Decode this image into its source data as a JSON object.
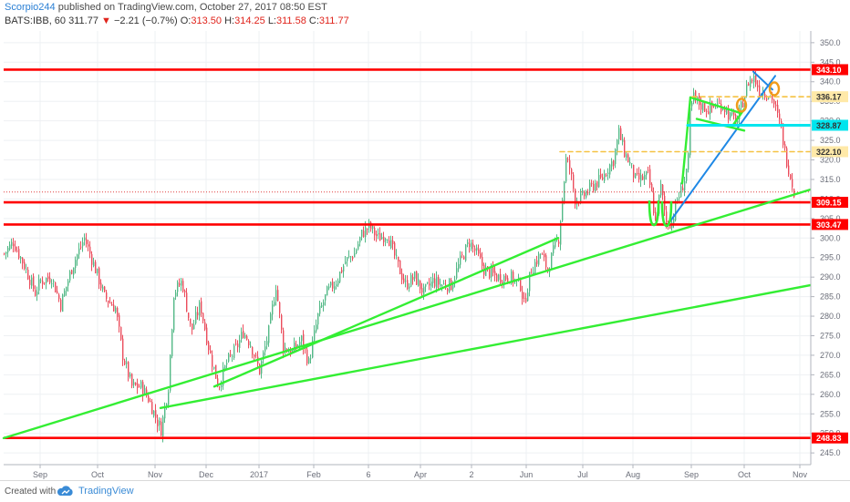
{
  "header": {
    "author": "Scorpio244",
    "published": "published on TradingView.com, October 27, 2017 08:50 EST",
    "symbol": "BATS:IBB, 60",
    "last": "311.77",
    "change": "−2.21 (−0.7%)",
    "o_label": "O:",
    "o_value": "313.50",
    "h_label": "H:",
    "h_value": "314.25",
    "l_label": "L:",
    "l_value": "311.58",
    "c_label": "C:",
    "c_value": "311.77"
  },
  "footer": {
    "created": "Created with",
    "brand": "TradingView"
  },
  "colors": {
    "up": "#53b987",
    "down": "#eb4d5c",
    "support": "#ff0000",
    "trend": "#33ee33",
    "wedge": "#1e88e5",
    "cyan": "#00e5ee",
    "dashed": "#f5c242",
    "circle": "#f09c1b"
  },
  "chart_data": {
    "type": "candlestick",
    "ylim": [
      242,
      353
    ],
    "y_ticks": [
      245,
      250,
      255,
      260,
      265,
      270,
      275,
      280,
      285,
      290,
      295,
      300,
      305,
      310,
      315,
      320,
      325,
      330,
      335,
      340,
      345,
      350
    ],
    "x_ticks": [
      {
        "label": "Sep",
        "bar": 40
      },
      {
        "label": "Oct",
        "bar": 103
      },
      {
        "label": "Nov",
        "bar": 166
      },
      {
        "label": "Dec",
        "bar": 222
      },
      {
        "label": "2017",
        "bar": 280
      },
      {
        "label": "Feb",
        "bar": 340
      },
      {
        "label": "6",
        "bar": 400
      },
      {
        "label": "Apr",
        "bar": 457
      },
      {
        "label": "2",
        "bar": 513
      },
      {
        "label": "Jun",
        "bar": 573
      },
      {
        "label": "Jul",
        "bar": 635
      },
      {
        "label": "Aug",
        "bar": 690
      },
      {
        "label": "Sep",
        "bar": 754
      },
      {
        "label": "Oct",
        "bar": 812
      },
      {
        "label": "Nov",
        "bar": 873
      }
    ],
    "price_anchors": [
      [
        0,
        296
      ],
      [
        10,
        299
      ],
      [
        22,
        293
      ],
      [
        34,
        286
      ],
      [
        40,
        289
      ],
      [
        52,
        290
      ],
      [
        62,
        283
      ],
      [
        75,
        293
      ],
      [
        88,
        300
      ],
      [
        100,
        292
      ],
      [
        110,
        285
      ],
      [
        122,
        282
      ],
      [
        130,
        270
      ],
      [
        140,
        262
      ],
      [
        150,
        262
      ],
      [
        158,
        259
      ],
      [
        168,
        253
      ],
      [
        172,
        251
      ],
      [
        180,
        262
      ],
      [
        186,
        286
      ],
      [
        195,
        289
      ],
      [
        205,
        276
      ],
      [
        215,
        283
      ],
      [
        225,
        271
      ],
      [
        235,
        262
      ],
      [
        244,
        268
      ],
      [
        255,
        272
      ],
      [
        262,
        276
      ],
      [
        270,
        273
      ],
      [
        280,
        266
      ],
      [
        290,
        276
      ],
      [
        298,
        288
      ],
      [
        306,
        272
      ],
      [
        316,
        271
      ],
      [
        326,
        274
      ],
      [
        334,
        268
      ],
      [
        344,
        280
      ],
      [
        354,
        286
      ],
      [
        364,
        289
      ],
      [
        374,
        294
      ],
      [
        384,
        296
      ],
      [
        392,
        301
      ],
      [
        400,
        303
      ],
      [
        410,
        300
      ],
      [
        420,
        301
      ],
      [
        430,
        294
      ],
      [
        440,
        288
      ],
      [
        450,
        290
      ],
      [
        460,
        286
      ],
      [
        470,
        289
      ],
      [
        480,
        288
      ],
      [
        490,
        288
      ],
      [
        500,
        294
      ],
      [
        510,
        299
      ],
      [
        518,
        296
      ],
      [
        526,
        292
      ],
      [
        540,
        290
      ],
      [
        555,
        290
      ],
      [
        566,
        288
      ],
      [
        570,
        283
      ],
      [
        578,
        292
      ],
      [
        588,
        296
      ],
      [
        596,
        292
      ],
      [
        604,
        298
      ],
      [
        608,
        300
      ],
      [
        612,
        310
      ],
      [
        616,
        320
      ],
      [
        620,
        318
      ],
      [
        626,
        310
      ],
      [
        632,
        310
      ],
      [
        640,
        312
      ],
      [
        648,
        314
      ],
      [
        655,
        315
      ],
      [
        662,
        318
      ],
      [
        668,
        320
      ],
      [
        674,
        327
      ],
      [
        680,
        322
      ],
      [
        686,
        319
      ],
      [
        692,
        315
      ],
      [
        698,
        315
      ],
      [
        706,
        316
      ],
      [
        710,
        311
      ],
      [
        714,
        304
      ],
      [
        720,
        313
      ],
      [
        726,
        304
      ],
      [
        732,
        304
      ],
      [
        738,
        310
      ],
      [
        742,
        312
      ],
      [
        746,
        315
      ],
      [
        750,
        320
      ],
      [
        752,
        332
      ],
      [
        756,
        336
      ],
      [
        764,
        334
      ],
      [
        772,
        333
      ],
      [
        780,
        334
      ],
      [
        788,
        334
      ],
      [
        796,
        331
      ],
      [
        804,
        330
      ],
      [
        810,
        335
      ],
      [
        816,
        340
      ],
      [
        822,
        341
      ],
      [
        828,
        338
      ],
      [
        836,
        337
      ],
      [
        842,
        336
      ],
      [
        848,
        331
      ],
      [
        852,
        328
      ],
      [
        856,
        322
      ],
      [
        860,
        318
      ],
      [
        863,
        315
      ],
      [
        866,
        312
      ]
    ],
    "horizontal_levels": [
      {
        "value": 343.1,
        "label": "343.10",
        "style": "support"
      },
      {
        "value": 336.17,
        "label": "336.17",
        "style": "dashed"
      },
      {
        "value": 328.87,
        "label": "328.87",
        "style": "cyan"
      },
      {
        "value": 322.1,
        "label": "322.10",
        "style": "dashed"
      },
      {
        "value": 309.15,
        "label": "309.15",
        "style": "support"
      },
      {
        "value": 303.47,
        "label": "303.47",
        "style": "support"
      },
      {
        "value": 248.83,
        "label": "248.83",
        "style": "support"
      },
      {
        "value": 311.77,
        "label": "",
        "style": "last-dotted"
      }
    ],
    "trendlines": [
      {
        "style": "trend",
        "from": {
          "bar": 0,
          "price": 248.8
        },
        "to": {
          "bar": 886,
          "price": 312.5
        }
      },
      {
        "style": "trend",
        "from": {
          "bar": 172,
          "price": 256.5
        },
        "to": {
          "bar": 893,
          "price": 288.3
        }
      },
      {
        "style": "trend",
        "from": {
          "bar": 231,
          "price": 262
        },
        "to": {
          "bar": 608,
          "price": 300
        }
      },
      {
        "style": "wedge",
        "from": {
          "bar": 730,
          "price": 304
        },
        "to": {
          "bar": 846,
          "price": 341.5
        }
      },
      {
        "style": "wedge",
        "from": {
          "bar": 822,
          "price": 342.6
        },
        "to": {
          "bar": 843,
          "price": 338
        }
      },
      {
        "style": "trend",
        "from": {
          "bar": 744,
          "price": 314
        },
        "to": {
          "bar": 753,
          "price": 336
        }
      },
      {
        "style": "trend",
        "from": {
          "bar": 753,
          "price": 336
        },
        "to": {
          "bar": 808,
          "price": 332
        }
      },
      {
        "style": "trend",
        "from": {
          "bar": 760,
          "price": 330.5
        },
        "to": {
          "bar": 812,
          "price": 327.5
        }
      },
      {
        "style": "trend",
        "from": {
          "bar": 800,
          "price": 329
        },
        "to": {
          "bar": 812,
          "price": 333
        }
      },
      {
        "style": "cyan-segment",
        "from": {
          "bar": 750,
          "price": 328.87
        },
        "to": {
          "bar": 888,
          "price": 328.87
        }
      },
      {
        "style": "dash-segment",
        "from": {
          "bar": 610,
          "price": 322.1
        },
        "to": {
          "bar": 888,
          "price": 322.1
        }
      },
      {
        "style": "dash-segment",
        "from": {
          "bar": 755,
          "price": 336.17
        },
        "to": {
          "bar": 888,
          "price": 336.17
        }
      }
    ],
    "markers": [
      {
        "shape": "bump",
        "bar": 713,
        "price": 303.8
      },
      {
        "shape": "bump",
        "bar": 727,
        "price": 303.6
      },
      {
        "shape": "ellipse",
        "bar": 809,
        "price": 334
      },
      {
        "shape": "ellipse",
        "bar": 845,
        "price": 338.2
      }
    ]
  }
}
